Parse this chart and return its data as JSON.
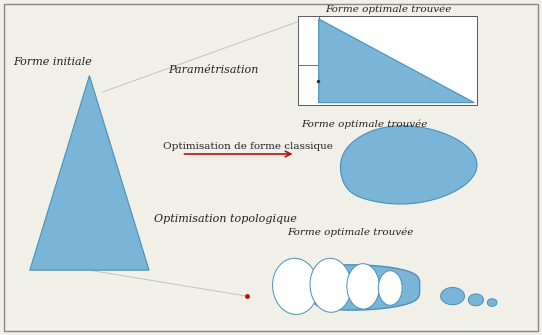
{
  "bg_color": "#f0efe8",
  "shape_fill": "#7ab5d8",
  "shape_edge": "#4a90b8",
  "border_color": "#888888",
  "text_color": "#222222",
  "arrow_color": "#bb1111",
  "line_color": "#bbbbbb",
  "title_forme_initiale": "Forme initiale",
  "title_parametrisation": "Paramétrisation",
  "title_optimisation_classique": "Optimisation de forme classique",
  "title_optimisation_topo": "Optimisation topologique",
  "title_forme_optimale": "Forme optimale trouvée",
  "figsize": [
    5.42,
    3.35
  ],
  "dpi": 100
}
